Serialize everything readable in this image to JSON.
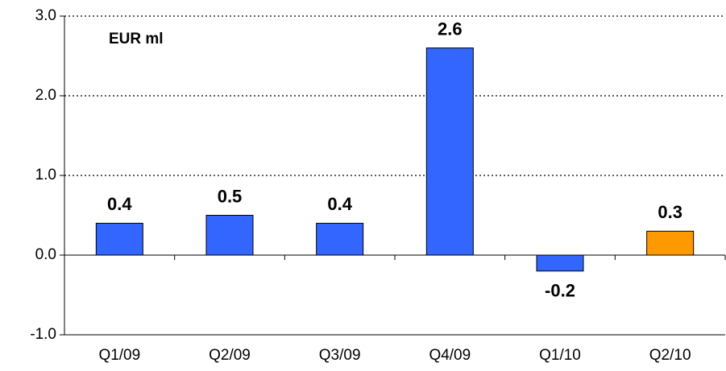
{
  "chart_data": {
    "type": "bar",
    "annotation": "EUR ml",
    "categories": [
      "Q1/09",
      "Q2/09",
      "Q3/09",
      "Q4/09",
      "Q1/10",
      "Q2/10"
    ],
    "values": [
      0.4,
      0.5,
      0.4,
      2.6,
      -0.2,
      0.3
    ],
    "colors": [
      "#3366ff",
      "#3366ff",
      "#3366ff",
      "#3366ff",
      "#3366ff",
      "#ff9900"
    ],
    "ylim": [
      -1,
      3
    ],
    "yticks": [
      {
        "value": -1,
        "label": "-1.0"
      },
      {
        "value": 0,
        "label": "0.0"
      },
      {
        "value": 1,
        "label": "1.0"
      },
      {
        "value": 2,
        "label": "2.0"
      },
      {
        "value": 3,
        "label": "3.0"
      }
    ],
    "grid": true
  }
}
